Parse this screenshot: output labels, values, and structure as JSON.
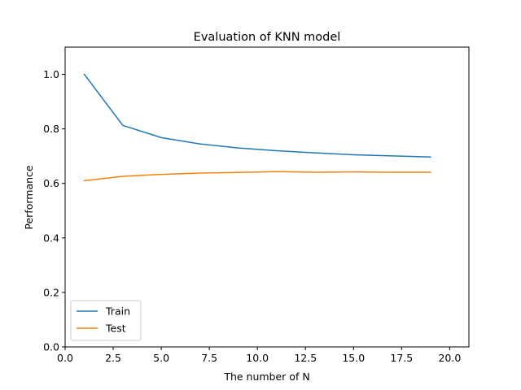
{
  "chart_data": {
    "type": "line",
    "title": "Evaluation of KNN model",
    "xlabel": "The number of N",
    "ylabel": "Performance",
    "xlim": [
      0,
      21
    ],
    "ylim": [
      0,
      1.1
    ],
    "xticks": [
      0,
      2.5,
      5,
      7.5,
      10,
      12.5,
      15,
      17.5,
      20
    ],
    "xtick_labels": [
      "0.0",
      "2.5",
      "5.0",
      "7.5",
      "10.0",
      "12.5",
      "15.0",
      "17.5",
      "20.0"
    ],
    "yticks": [
      0,
      0.2,
      0.4,
      0.6,
      0.8,
      1.0
    ],
    "ytick_labels": [
      "0.0",
      "0.2",
      "0.4",
      "0.6",
      "0.8",
      "1.0"
    ],
    "x": [
      1,
      3,
      5,
      7,
      9,
      11,
      13,
      15,
      17,
      19
    ],
    "series": [
      {
        "name": "Train",
        "color": "#1f77b4",
        "values": [
          1.0,
          0.813,
          0.768,
          0.745,
          0.73,
          0.72,
          0.712,
          0.705,
          0.701,
          0.697
        ]
      },
      {
        "name": "Test",
        "color": "#ff7f0e",
        "values": [
          0.61,
          0.626,
          0.633,
          0.638,
          0.64,
          0.643,
          0.641,
          0.642,
          0.641,
          0.641
        ]
      }
    ],
    "legend": "lower-left",
    "grid": false
  }
}
